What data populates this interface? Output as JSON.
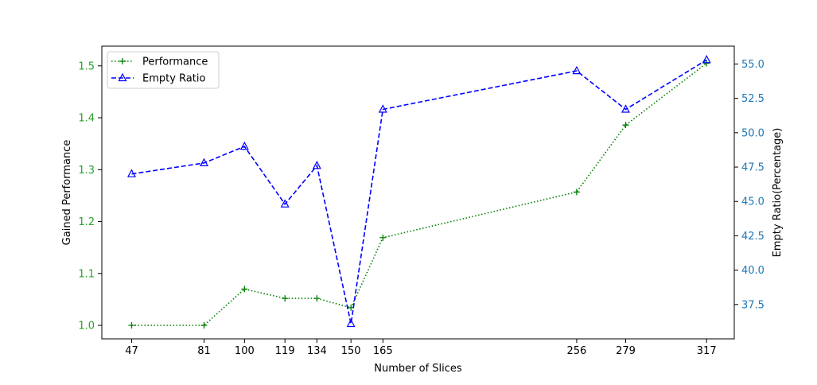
{
  "chart_data": {
    "type": "line",
    "title": "",
    "xlabel": "Number of Slices",
    "ylabel_left": "Gained Performance",
    "ylabel_right": "Empty Ratio(Percentage)",
    "x": [
      47,
      81,
      100,
      119,
      134,
      150,
      165,
      256,
      279,
      317
    ],
    "xlim": [
      33,
      330
    ],
    "ylim_left": [
      0.974,
      1.538
    ],
    "ylim_right": [
      35.0,
      56.3
    ],
    "yticks_left": [
      "1.0",
      "1.1",
      "1.2",
      "1.3",
      "1.4",
      "1.5"
    ],
    "yticks_right": [
      "37.5",
      "40.0",
      "42.5",
      "45.0",
      "47.5",
      "50.0",
      "52.5",
      "55.0"
    ],
    "legend_position": "upper left",
    "series": [
      {
        "name": "Performance",
        "axis": "left",
        "color": "#008000",
        "line_style": "dotted",
        "marker": "plus",
        "values": [
          1.0,
          1.0,
          1.07,
          1.052,
          1.052,
          1.034,
          1.169,
          1.257,
          1.386,
          1.505
        ]
      },
      {
        "name": "Empty Ratio",
        "axis": "right",
        "color": "#0000ff",
        "line_style": "dashed",
        "marker": "triangle",
        "values": [
          47.0,
          47.8,
          49.0,
          44.8,
          47.6,
          36.1,
          51.7,
          54.5,
          51.7,
          55.3
        ]
      }
    ],
    "left_tick_color": "#2ca02c",
    "right_tick_color": "#1f77b4"
  }
}
